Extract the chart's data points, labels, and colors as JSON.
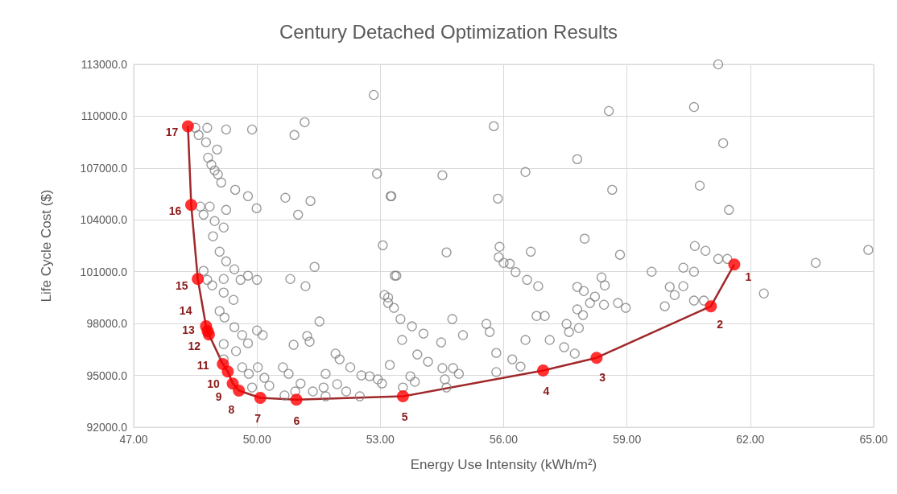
{
  "chart_data": {
    "type": "scatter",
    "title": "Century Detached Optimization Results",
    "xlabel": "Energy Use Intensity (kWh/m²)",
    "ylabel": "Life Cycle Cost ($)",
    "xlim": [
      47,
      65
    ],
    "ylim": [
      92000,
      113000
    ],
    "xticks": [
      {
        "value": 47,
        "label": "47.00"
      },
      {
        "value": 50,
        "label": "50.00"
      },
      {
        "value": 53,
        "label": "53.00"
      },
      {
        "value": 56,
        "label": "56.00"
      },
      {
        "value": 59,
        "label": "59.00"
      },
      {
        "value": 62,
        "label": "62.00"
      },
      {
        "value": 65,
        "label": "65.00"
      }
    ],
    "yticks": [
      {
        "value": 92000,
        "label": "92000.0"
      },
      {
        "value": 95000,
        "label": "95000.0"
      },
      {
        "value": 98000,
        "label": "98000.0"
      },
      {
        "value": 101000,
        "label": "101000.0"
      },
      {
        "value": 104000,
        "label": "104000.0"
      },
      {
        "value": 107000,
        "label": "107000.0"
      },
      {
        "value": 110000,
        "label": "110000.0"
      },
      {
        "value": 113000,
        "label": "113000.0"
      }
    ],
    "grid": true,
    "series": [
      {
        "marker": "circle",
        "color": "#7f7f7f",
        "x": [
          52.84,
          48.5,
          48.79,
          49.25,
          49.88,
          50.91,
          51.16,
          48.58,
          48.76,
          49.03,
          48.81,
          48.89,
          48.97,
          49.05,
          49.13,
          49.47,
          49.78,
          50.69,
          51.3,
          49.99,
          51.0,
          52.92,
          53.25,
          48.62,
          48.85,
          49.25,
          48.7,
          48.97,
          49.19,
          48.93,
          53.06,
          49.09,
          49.25,
          49.45,
          48.7,
          48.79,
          48.91,
          49.19,
          49.6,
          49.78,
          50.0,
          50.81,
          51.4,
          51.18,
          49.19,
          49.43,
          49.09,
          49.21,
          49.45,
          49.64,
          49.78,
          50.0,
          50.14,
          51.52,
          50.89,
          51.22,
          51.28,
          49.19,
          49.49,
          49.19,
          49.64,
          49.8,
          50.02,
          50.18,
          50.3,
          49.88,
          50.63,
          50.77,
          51.06,
          50.67,
          50.93,
          51.36,
          51.62,
          51.67,
          51.91,
          52.01,
          52.27,
          51.67,
          51.95,
          52.17,
          52.54,
          52.74,
          52.5,
          52.94,
          53.04,
          53.23,
          53.1,
          53.19,
          53.35,
          55.76,
          54.51,
          53.27,
          55.86,
          56.53,
          57.79,
          58.56,
          58.64,
          54.61,
          55.9,
          55.88,
          56.0,
          56.15,
          56.29,
          56.57,
          56.84,
          56.66,
          57.97,
          58.83,
          53.39,
          53.19,
          53.33,
          53.49,
          53.77,
          54.05,
          54.75,
          55.01,
          54.48,
          53.53,
          53.9,
          54.16,
          55.58,
          55.66,
          55.82,
          55.82,
          54.51,
          54.77,
          54.91,
          54.57,
          54.61,
          53.73,
          53.84,
          53.55,
          56.21,
          56.41,
          56.53,
          57.12,
          56.8,
          57.0,
          57.47,
          57.73,
          57.53,
          57.59,
          57.79,
          57.93,
          57.83,
          58.1,
          58.22,
          58.44,
          57.79,
          57.95,
          58.38,
          58.46,
          58.78,
          58.97,
          61.22,
          60.63,
          61.34,
          60.77,
          61.48,
          60.65,
          60.91,
          61.22,
          61.44,
          59.6,
          60.37,
          60.63,
          60.04,
          60.37,
          60.16,
          59.92,
          60.63,
          60.87,
          62.33,
          63.59,
          64.87
        ],
        "values": [
          111230,
          109330,
          109330,
          109230,
          109230,
          108910,
          109650,
          108910,
          108490,
          108070,
          107600,
          107190,
          106860,
          106630,
          106160,
          105740,
          105370,
          105280,
          105090,
          104670,
          104300,
          106670,
          105370,
          104770,
          104770,
          104580,
          104300,
          103930,
          103560,
          103050,
          102530,
          102160,
          101600,
          101140,
          101050,
          100530,
          100210,
          100580,
          100530,
          100770,
          100530,
          100580,
          101280,
          100160,
          99790,
          99370,
          98720,
          98350,
          97790,
          97330,
          96860,
          97600,
          97330,
          98120,
          96770,
          97280,
          96950,
          96810,
          96400,
          95930,
          95470,
          95090,
          95470,
          94860,
          94400,
          94300,
          95470,
          95090,
          94530,
          93840,
          94070,
          94070,
          94300,
          93790,
          96260,
          95930,
          95470,
          95090,
          94490,
          94070,
          95000,
          94950,
          93790,
          94770,
          94530,
          95600,
          99650,
          99190,
          100770,
          109420,
          106580,
          105370,
          105230,
          106770,
          107510,
          110300,
          105740,
          102120,
          102440,
          101840,
          101510,
          101460,
          100980,
          100530,
          100160,
          102160,
          102910,
          101980,
          100770,
          99510,
          98910,
          98260,
          97840,
          97420,
          98260,
          97330,
          96910,
          97050,
          96210,
          95790,
          97980,
          97510,
          96300,
          95190,
          95420,
          95420,
          95090,
          94770,
          94300,
          94950,
          94630,
          94300,
          95930,
          95510,
          97050,
          97050,
          98440,
          98440,
          96630,
          96260,
          97980,
          97510,
          98820,
          98490,
          97740,
          99190,
          99560,
          99090,
          100120,
          99880,
          100670,
          100210,
          99190,
          98910,
          113000,
          110530,
          108440,
          105980,
          104580,
          102490,
          102210,
          101740,
          101740,
          101000,
          101230,
          101000,
          100120,
          100160,
          99650,
          99000,
          99330,
          99330,
          99740,
          101510,
          102260
        ]
      },
      {
        "type": "line",
        "marker": "none",
        "color": "#a0282a",
        "x": [
          61.61,
          61.04,
          58.26,
          56.96,
          53.55,
          50.96,
          50.08,
          49.56,
          49.41,
          49.29,
          49.17,
          48.83,
          48.8,
          48.76,
          48.56,
          48.4,
          48.32
        ],
        "values": [
          101420,
          99000,
          96020,
          95280,
          93790,
          93600,
          93700,
          94120,
          94530,
          95230,
          95650,
          97370,
          97560,
          97840,
          100580,
          104860,
          109420
        ]
      },
      {
        "marker": "circle",
        "color": "#ff0000",
        "x": [
          61.61,
          61.04,
          58.26,
          56.96,
          53.55,
          50.96,
          50.08,
          49.56,
          49.41,
          49.29,
          49.17,
          48.83,
          48.8,
          48.76,
          48.56,
          48.4,
          48.32
        ],
        "values": [
          101420,
          99000,
          96020,
          95280,
          93790,
          93600,
          93700,
          94120,
          94530,
          95230,
          95650,
          97370,
          97560,
          97840,
          100580,
          104860,
          109420
        ]
      }
    ],
    "annotations": [
      {
        "text": "1",
        "x": 61.61,
        "y": 101420
      },
      {
        "text": "2",
        "x": 61.04,
        "y": 99000
      },
      {
        "text": "3",
        "x": 58.26,
        "y": 96020
      },
      {
        "text": "4",
        "x": 56.96,
        "y": 95280
      },
      {
        "text": "5",
        "x": 53.55,
        "y": 93790
      },
      {
        "text": "6",
        "x": 50.96,
        "y": 93600
      },
      {
        "text": "7",
        "x": 50.08,
        "y": 93700
      },
      {
        "text": "8",
        "x": 49.56,
        "y": 94120
      },
      {
        "text": "9",
        "x": 49.41,
        "y": 94530
      },
      {
        "text": "10",
        "x": 49.29,
        "y": 95230
      },
      {
        "text": "11",
        "x": 49.17,
        "y": 95650
      },
      {
        "text": "12",
        "x": 48.83,
        "y": 97370
      },
      {
        "text": "13",
        "x": 48.8,
        "y": 97560
      },
      {
        "text": "14",
        "x": 48.76,
        "y": 97840
      },
      {
        "text": "15",
        "x": 48.56,
        "y": 100580
      },
      {
        "text": "16",
        "x": 48.4,
        "y": 104860
      },
      {
        "text": "17",
        "x": 48.32,
        "y": 109420
      }
    ]
  }
}
